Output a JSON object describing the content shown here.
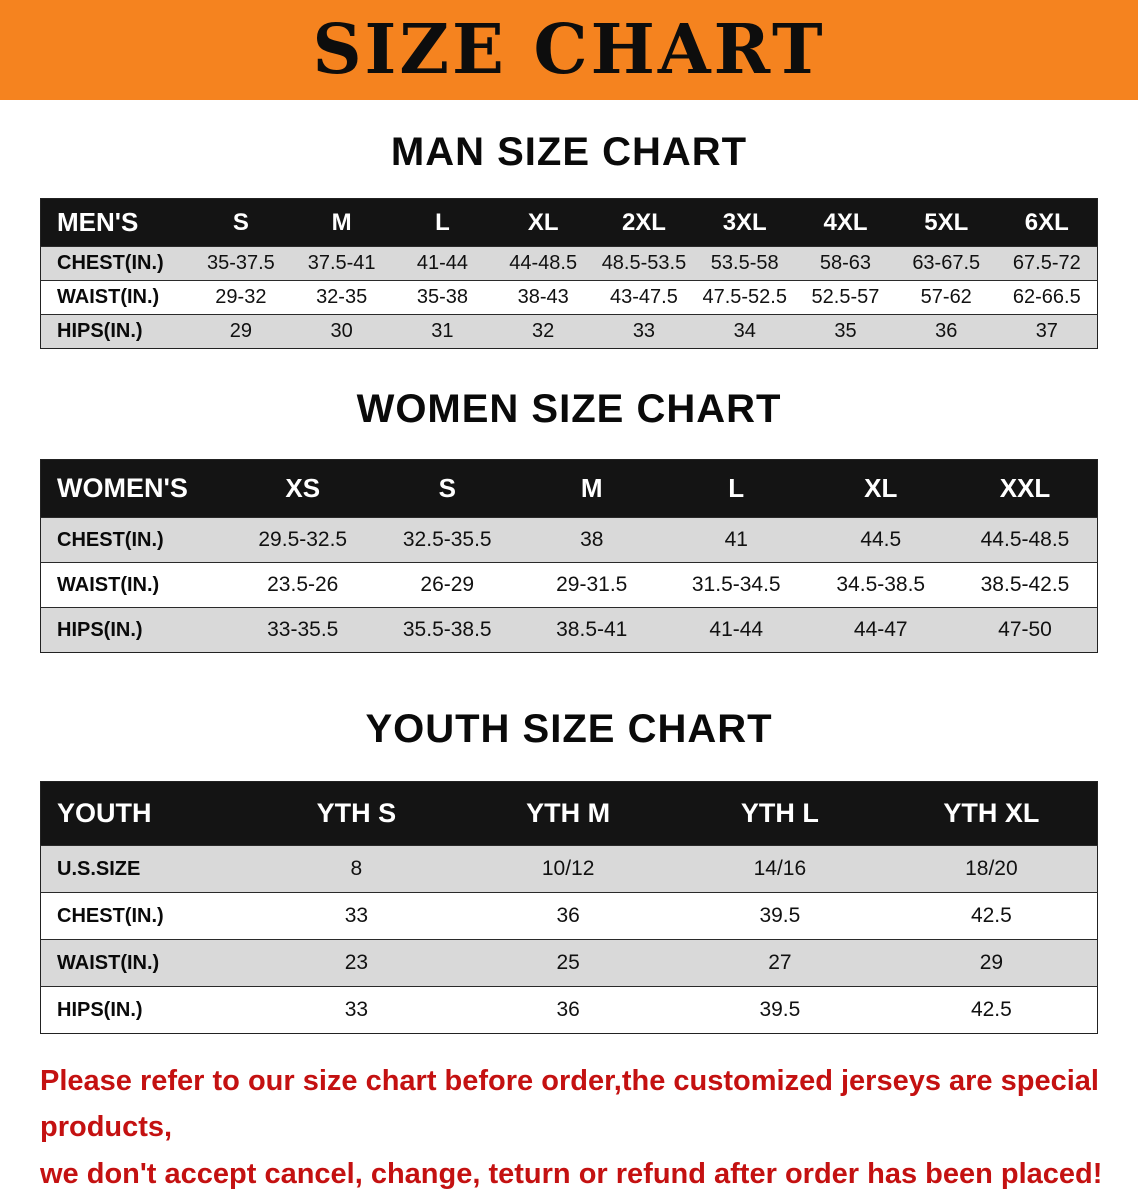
{
  "banner": {
    "title": "SIZE CHART"
  },
  "colors": {
    "banner_orange": "#f5831f",
    "table_header_black": "#141414",
    "row_gray": "#d9d9d9",
    "note_red": "#c41111"
  },
  "sections": {
    "men": {
      "title": "MAN SIZE CHART",
      "header": [
        "MEN'S",
        "S",
        "M",
        "L",
        "XL",
        "2XL",
        "3XL",
        "4XL",
        "5XL",
        "6XL"
      ],
      "rows": [
        [
          "CHEST(IN.)",
          "35-37.5",
          "37.5-41",
          "41-44",
          "44-48.5",
          "48.5-53.5",
          "53.5-58",
          "58-63",
          "63-67.5",
          "67.5-72"
        ],
        [
          "WAIST(IN.)",
          "29-32",
          "32-35",
          "35-38",
          "38-43",
          "43-47.5",
          "47.5-52.5",
          "52.5-57",
          "57-62",
          "62-66.5"
        ],
        [
          "HIPS(IN.)",
          "29",
          "30",
          "31",
          "32",
          "33",
          "34",
          "35",
          "36",
          "37"
        ]
      ]
    },
    "women": {
      "title": "WOMEN SIZE CHART",
      "header": [
        "WOMEN'S",
        "XS",
        "S",
        "M",
        "L",
        "XL",
        "XXL"
      ],
      "rows": [
        [
          "CHEST(IN.)",
          "29.5-32.5",
          "32.5-35.5",
          "38",
          "41",
          "44.5",
          "44.5-48.5"
        ],
        [
          "WAIST(IN.)",
          "23.5-26",
          "26-29",
          "29-31.5",
          "31.5-34.5",
          "34.5-38.5",
          "38.5-42.5"
        ],
        [
          "HIPS(IN.)",
          "33-35.5",
          "35.5-38.5",
          "38.5-41",
          "41-44",
          "44-47",
          "47-50"
        ]
      ]
    },
    "youth": {
      "title": "YOUTH SIZE CHART",
      "header": [
        "YOUTH",
        "YTH S",
        "YTH M",
        "YTH L",
        "YTH XL"
      ],
      "rows": [
        [
          "U.S.SIZE",
          "8",
          "10/12",
          "14/16",
          "18/20"
        ],
        [
          "CHEST(IN.)",
          "33",
          "36",
          "39.5",
          "42.5"
        ],
        [
          "WAIST(IN.)",
          "23",
          "25",
          "27",
          "29"
        ],
        [
          "HIPS(IN.)",
          "33",
          "36",
          "39.5",
          "42.5"
        ]
      ]
    }
  },
  "footer": {
    "line1": "Please refer to our size chart before order,the customized jerseys are special products,",
    "line2": "we don't accept cancel, change, teturn or refund after order has been placed!"
  }
}
